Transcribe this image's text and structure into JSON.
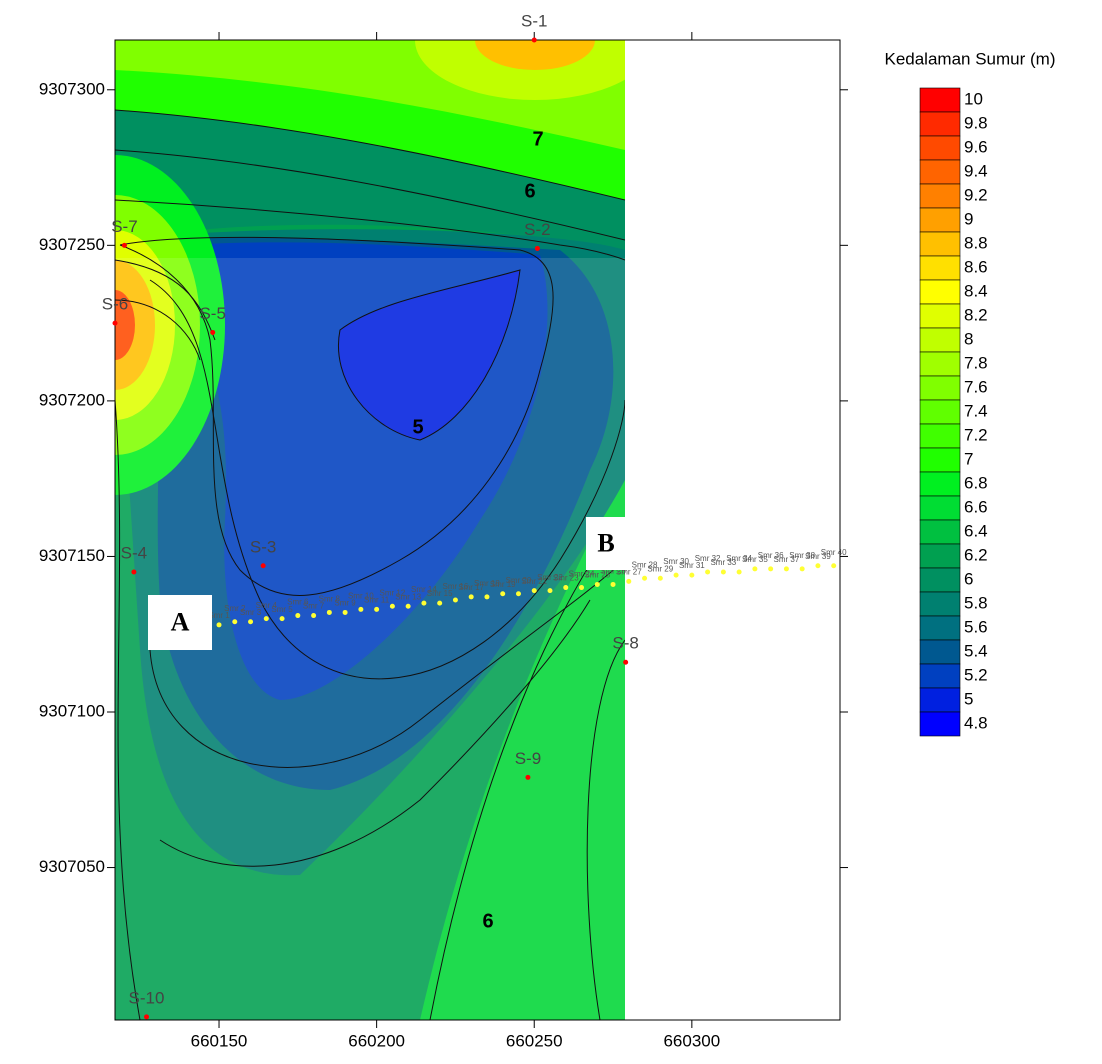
{
  "chart_data": {
    "type": "contour",
    "legend_title": "Kedalaman Sumur (m)",
    "xlim": [
      660117,
      660347
    ],
    "ylim": [
      9307001,
      9307316
    ],
    "xticks": [
      660150,
      660200,
      660250,
      660300
    ],
    "yticks": [
      9307050,
      9307100,
      9307150,
      9307200,
      9307250,
      9307300
    ],
    "colorbar": {
      "levels": [
        10,
        9.8,
        9.6,
        9.4,
        9.2,
        9,
        8.8,
        8.6,
        8.4,
        8.2,
        8,
        7.8,
        7.6,
        7.4,
        7.2,
        7,
        6.8,
        6.6,
        6.4,
        6.2,
        6,
        5.8,
        5.6,
        5.4,
        5.2,
        5,
        4.8
      ],
      "colors": [
        "#ff0000",
        "#ff2a00",
        "#ff4a00",
        "#ff6400",
        "#ff8000",
        "#ffa000",
        "#ffc000",
        "#ffe000",
        "#ffff00",
        "#e0ff00",
        "#c0ff00",
        "#a0ff00",
        "#80ff00",
        "#60ff00",
        "#40ff00",
        "#20ff00",
        "#00f020",
        "#00dd33",
        "#00c040",
        "#00a050",
        "#009060",
        "#008070",
        "#007080",
        "#005890",
        "#0040c0",
        "#0020e0",
        "#0000ff"
      ]
    },
    "contour_labels": [
      "7",
      "6",
      "5",
      "6"
    ],
    "section_labels": [
      "A",
      "B"
    ],
    "wells": {
      "names": [
        "S-1",
        "S-2",
        "S-3",
        "S-4",
        "S-5",
        "S-6",
        "S-7",
        "S-8",
        "S-9",
        "S-10"
      ],
      "x": [
        660250,
        660251,
        660164,
        660123,
        660148,
        660117,
        660120,
        660279,
        660248,
        660127
      ],
      "y": [
        9307316,
        9307249,
        9307147,
        9307145,
        9307222,
        9307225,
        9307250,
        9307116,
        9307079,
        9307002
      ],
      "color": "#ff0000"
    },
    "survey_points": {
      "names": [
        "Smr 1",
        "Smr 2",
        "Smr 3",
        "Smr 4",
        "Smr 5",
        "Smr 6",
        "Smr 7",
        "Smr 8",
        "Smr 9",
        "Smr 10",
        "Smr 11",
        "Smr 12",
        "Smr 13",
        "Smr 14",
        "Smr 15",
        "Smr 16",
        "Smr 17",
        "Smr 18",
        "Smr 19",
        "Smr 20",
        "Smr 21",
        "Smr 22",
        "Smr 23",
        "Smr 24",
        "Smr 25",
        "Smr 26",
        "Smr 27",
        "Smr 28",
        "Smr 29",
        "Smr 30",
        "Smr 31",
        "Smr 32",
        "Smr 33",
        "Smr 34",
        "Smr 35",
        "Smr 36",
        "Smr 37",
        "Smr 38",
        "Smr 39",
        "Smr 40"
      ],
      "x": [
        660150,
        660155,
        660160,
        660165,
        660170,
        660175,
        660180,
        660185,
        660190,
        660195,
        660200,
        660205,
        660210,
        660215,
        660220,
        660225,
        660230,
        660235,
        660240,
        660245,
        660250,
        660255,
        660260,
        660265,
        660270,
        660275,
        660280,
        660285,
        660290,
        660295,
        660300,
        660305,
        660310,
        660315,
        660320,
        660325,
        660330,
        660335,
        660340,
        660345
      ],
      "y": [
        9307128,
        9307129,
        9307129,
        9307130,
        9307130,
        9307131,
        9307131,
        9307132,
        9307132,
        9307133,
        9307133,
        9307134,
        9307134,
        9307135,
        9307135,
        9307136,
        9307137,
        9307137,
        9307138,
        9307138,
        9307139,
        9307139,
        9307140,
        9307140,
        9307141,
        9307141,
        9307142,
        9307143,
        9307143,
        9307144,
        9307144,
        9307145,
        9307145,
        9307145,
        9307146,
        9307146,
        9307146,
        9307146,
        9307147,
        9307147
      ],
      "color": "#ffff33"
    }
  }
}
